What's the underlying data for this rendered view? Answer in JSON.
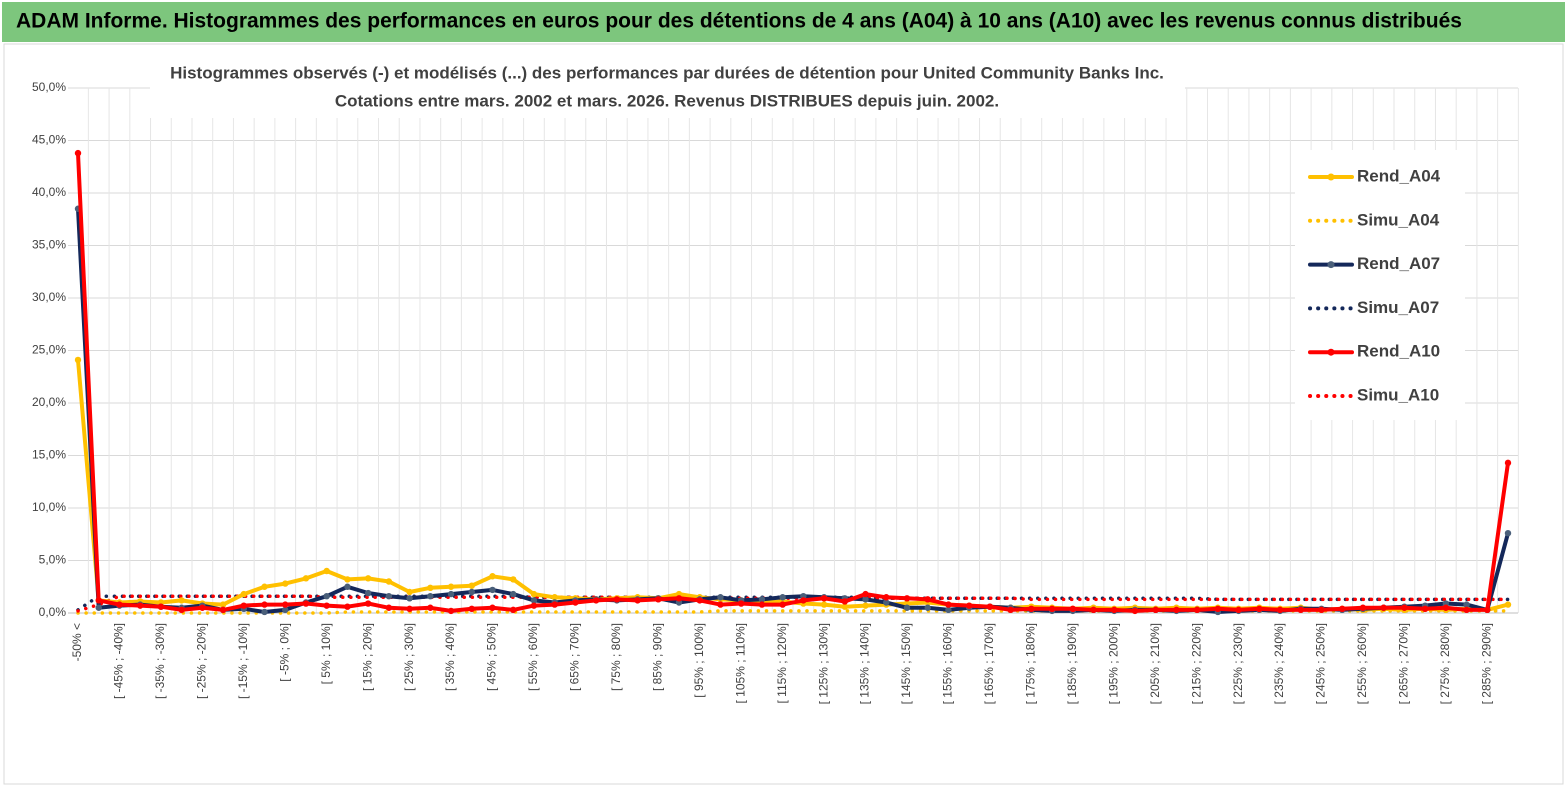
{
  "chart_data": {
    "type": "line",
    "title": "ADAM Informe. Histogrammes des performances en euros pour des détentions de 4 ans (A04) à 10 ans (A10) avec les revenus connus distribués",
    "subtitle": [
      "Histogrammes observés (-) et modélisés (...) des performances par durées de détention pour United Community Banks Inc.",
      "Cotations entre mars. 2002 et mars. 2026. Revenus DISTRIBUES depuis juin. 2002."
    ],
    "categories": [
      "-50% <",
      null,
      "[ -45% ; -40%]",
      null,
      "[ -35% ; -30%]",
      null,
      "[ -25% ; -20%]",
      null,
      "[ -15% ; -10%]",
      null,
      "[ -5% ; 0%]",
      null,
      "[ 5% ; 10%]",
      null,
      "[ 15% ; 20%]",
      null,
      "[ 25% ; 30%]",
      null,
      "[ 35% ; 40%]",
      null,
      "[ 45% ; 50%]",
      null,
      "[ 55% ; 60%]",
      null,
      "[ 65% ; 70%]",
      null,
      "[ 75% ; 80%]",
      null,
      "[ 85% ; 90%]",
      null,
      "[ 95% ; 100%]",
      null,
      "[ 105% ; 110%]",
      null,
      "[ 115% ; 120%]",
      null,
      "[ 125% ; 130%]",
      null,
      "[ 135% ; 140%]",
      null,
      "[ 145% ; 150%]",
      null,
      "[ 155% ; 160%]",
      null,
      "[ 165% ; 170%]",
      null,
      "[ 175% ; 180%]",
      null,
      "[ 185% ; 190%]",
      null,
      "[ 195% ; 200%]",
      null,
      "[ 205% ; 210%]",
      null,
      "[ 215% ; 220%]",
      null,
      "[ 225% ; 230%]",
      null,
      "[ 235% ; 240%]",
      null,
      "[ 245% ; 250%]",
      null,
      "[ 255% ; 260%]",
      null,
      "[ 265% ; 270%]",
      null,
      "[ 275% ; 280%]",
      null,
      "[ 285% ; 290%]",
      null
    ],
    "series": [
      {
        "name": "Rend_A04",
        "color": "#ffc000",
        "style": "solid",
        "values": [
          24.1,
          1.2,
          1.0,
          1.1,
          1.0,
          1.2,
          0.9,
          0.8,
          1.8,
          2.5,
          2.8,
          3.3,
          4.0,
          3.2,
          3.3,
          3.0,
          2.0,
          2.4,
          2.5,
          2.6,
          3.5,
          3.2,
          1.8,
          1.5,
          1.4,
          1.3,
          1.4,
          1.5,
          1.4,
          1.8,
          1.5,
          1.3,
          1.2,
          1.0,
          1.1,
          0.9,
          0.8,
          0.6,
          0.7,
          0.8,
          0.9,
          1.0,
          0.8,
          0.7,
          0.6,
          0.5,
          0.6,
          0.5,
          0.4,
          0.5,
          0.4,
          0.5,
          0.4,
          0.5,
          0.4,
          0.5,
          0.4,
          0.5,
          0.4,
          0.5,
          0.3,
          0.4,
          0.3,
          0.4,
          0.3,
          0.4,
          0.3,
          0.4,
          0.3,
          0.8
        ]
      },
      {
        "name": "Simu_A04",
        "color": "#ffc000",
        "style": "dotted",
        "values": [
          0.0,
          0.0,
          0.0,
          0.0,
          0.0,
          0.0,
          0.0,
          0.0,
          0.0,
          0.0,
          0.0,
          0.0,
          0.0,
          0.1,
          0.1,
          0.1,
          0.1,
          0.1,
          0.1,
          0.1,
          0.1,
          0.1,
          0.1,
          0.1,
          0.1,
          0.1,
          0.1,
          0.1,
          0.1,
          0.1,
          0.1,
          0.2,
          0.2,
          0.2,
          0.2,
          0.2,
          0.2,
          0.2,
          0.2,
          0.2,
          0.2,
          0.2,
          0.2,
          0.2,
          0.2,
          0.2,
          0.2,
          0.2,
          0.2,
          0.2,
          0.2,
          0.2,
          0.2,
          0.2,
          0.2,
          0.2,
          0.2,
          0.2,
          0.2,
          0.2,
          0.2,
          0.2,
          0.2,
          0.2,
          0.2,
          0.2,
          0.2,
          0.2,
          0.2,
          0.2
        ]
      },
      {
        "name": "Rend_A07",
        "color": "#14285a",
        "style": "solid",
        "values": [
          38.5,
          0.5,
          0.7,
          0.8,
          0.6,
          0.5,
          0.7,
          0.3,
          0.4,
          0.1,
          0.3,
          1.0,
          1.6,
          2.5,
          1.9,
          1.6,
          1.4,
          1.6,
          1.8,
          2.0,
          2.2,
          1.8,
          1.2,
          1.0,
          1.2,
          1.3,
          1.2,
          1.3,
          1.4,
          1.0,
          1.3,
          1.5,
          1.2,
          1.3,
          1.5,
          1.6,
          1.5,
          1.4,
          1.3,
          1.0,
          0.5,
          0.5,
          0.3,
          0.5,
          0.6,
          0.5,
          0.3,
          0.2,
          0.2,
          0.3,
          0.2,
          0.3,
          0.3,
          0.2,
          0.3,
          0.1,
          0.2,
          0.3,
          0.2,
          0.4,
          0.4,
          0.3,
          0.4,
          0.5,
          0.6,
          0.7,
          0.9,
          0.8,
          0.3,
          7.6
        ]
      },
      {
        "name": "Simu_A07",
        "color": "#14285a",
        "style": "dotted",
        "values": [
          0.3,
          1.6,
          1.6,
          1.6,
          1.6,
          1.6,
          1.6,
          1.6,
          1.6,
          1.6,
          1.6,
          1.6,
          1.6,
          1.6,
          1.6,
          1.6,
          1.6,
          1.6,
          1.6,
          1.6,
          1.6,
          1.6,
          1.5,
          1.5,
          1.5,
          1.5,
          1.5,
          1.5,
          1.5,
          1.5,
          1.5,
          1.5,
          1.5,
          1.5,
          1.5,
          1.5,
          1.5,
          1.5,
          1.5,
          1.4,
          1.4,
          1.4,
          1.4,
          1.4,
          1.4,
          1.4,
          1.4,
          1.4,
          1.4,
          1.4,
          1.4,
          1.4,
          1.4,
          1.4,
          1.4,
          1.3,
          1.3,
          1.3,
          1.3,
          1.3,
          1.3,
          1.3,
          1.3,
          1.3,
          1.3,
          1.3,
          1.3,
          1.3,
          1.3,
          1.3
        ]
      },
      {
        "name": "Rend_A10",
        "color": "#ff0000",
        "style": "solid",
        "values": [
          43.8,
          1.2,
          0.8,
          0.7,
          0.6,
          0.3,
          0.5,
          0.3,
          0.7,
          0.8,
          0.8,
          0.9,
          0.7,
          0.6,
          0.9,
          0.5,
          0.4,
          0.5,
          0.2,
          0.4,
          0.5,
          0.3,
          0.7,
          0.8,
          1.0,
          1.2,
          1.3,
          1.2,
          1.3,
          1.4,
          1.2,
          0.8,
          0.9,
          0.8,
          0.8,
          1.2,
          1.4,
          1.1,
          1.8,
          1.5,
          1.4,
          1.3,
          0.8,
          0.7,
          0.6,
          0.3,
          0.4,
          0.4,
          0.4,
          0.3,
          0.3,
          0.2,
          0.3,
          0.3,
          0.3,
          0.4,
          0.3,
          0.4,
          0.3,
          0.3,
          0.3,
          0.4,
          0.5,
          0.5,
          0.5,
          0.4,
          0.5,
          0.3,
          0.3,
          14.3
        ]
      },
      {
        "name": "Simu_A10",
        "color": "#ff0000",
        "style": "dotted",
        "values": [
          0.2,
          0.8,
          1.6,
          1.6,
          1.6,
          1.6,
          1.6,
          1.6,
          1.6,
          1.6,
          1.6,
          1.6,
          1.5,
          1.5,
          1.5,
          1.5,
          1.5,
          1.5,
          1.5,
          1.5,
          1.5,
          1.5,
          1.5,
          1.5,
          1.5,
          1.5,
          1.5,
          1.5,
          1.4,
          1.4,
          1.4,
          1.4,
          1.4,
          1.4,
          1.4,
          1.4,
          1.4,
          1.4,
          1.4,
          1.4,
          1.4,
          1.4,
          1.4,
          1.4,
          1.4,
          1.4,
          1.3,
          1.3,
          1.3,
          1.3,
          1.3,
          1.3,
          1.3,
          1.3,
          1.3,
          1.3,
          1.3,
          1.3,
          1.3,
          1.3,
          1.3,
          1.3,
          1.3,
          1.3,
          1.3,
          1.3,
          1.3,
          1.3,
          1.3,
          1.3
        ]
      }
    ],
    "ylim": [
      0,
      50
    ],
    "yticks": [
      {
        "value": 0,
        "label": "0,0%"
      },
      {
        "value": 5,
        "label": "5,0%"
      },
      {
        "value": 10,
        "label": "10,0%"
      },
      {
        "value": 15,
        "label": "15,0%"
      },
      {
        "value": 20,
        "label": "20,0%"
      },
      {
        "value": 25,
        "label": "25,0%"
      },
      {
        "value": 30,
        "label": "30,0%"
      },
      {
        "value": 35,
        "label": "35,0%"
      },
      {
        "value": 40,
        "label": "40,0%"
      },
      {
        "value": 45,
        "label": "45,0%"
      },
      {
        "value": 50,
        "label": "50,0%"
      }
    ],
    "grid": true,
    "legend": "right"
  }
}
